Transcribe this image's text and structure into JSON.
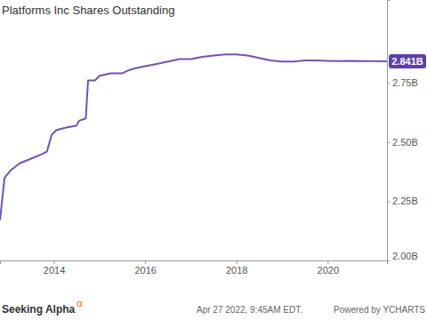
{
  "chart_data": {
    "type": "line",
    "title": "Platforms Inc Shares Outstanding",
    "x": [
      2012.82,
      2012.92,
      2013.05,
      2013.25,
      2013.5,
      2013.75,
      2013.85,
      2013.95,
      2014.05,
      2014.25,
      2014.5,
      2014.55,
      2014.7,
      2014.75,
      2014.9,
      2015.0,
      2015.25,
      2015.5,
      2015.6,
      2015.75,
      2016.0,
      2016.25,
      2016.5,
      2016.75,
      2017.0,
      2017.25,
      2017.5,
      2017.75,
      2018.0,
      2018.25,
      2018.5,
      2018.75,
      2019.0,
      2019.25,
      2019.5,
      2019.75,
      2020.0,
      2020.25,
      2020.5,
      2020.75,
      2021.0,
      2021.3
    ],
    "values": [
      2.17,
      2.35,
      2.38,
      2.41,
      2.43,
      2.45,
      2.46,
      2.53,
      2.55,
      2.56,
      2.57,
      2.59,
      2.6,
      2.76,
      2.76,
      2.78,
      2.79,
      2.79,
      2.8,
      2.81,
      2.82,
      2.83,
      2.84,
      2.85,
      2.85,
      2.86,
      2.865,
      2.87,
      2.87,
      2.865,
      2.855,
      2.845,
      2.84,
      2.84,
      2.845,
      2.845,
      2.843,
      2.842,
      2.843,
      2.842,
      2.842,
      2.841
    ],
    "color": "#6f52c2",
    "xlim": [
      2012.82,
      2021.3
    ],
    "xticks": [
      2014,
      2016,
      2018,
      2020
    ],
    "ylim": [
      2.0,
      3.1
    ],
    "yticks": [
      {
        "value": 2.0,
        "label": "2.00B"
      },
      {
        "value": 2.25,
        "label": "2.25B"
      },
      {
        "value": 2.5,
        "label": "2.50B"
      },
      {
        "value": 2.75,
        "label": "2.75B"
      }
    ],
    "grid": false,
    "annotations": [
      {
        "text": "2.841B",
        "value": 2.841
      }
    ],
    "source": "Seeking Alpha",
    "source_mark": "α",
    "footer": "Apr 27 2022, 9:45AM EDT.",
    "credit": "Powered by YCHARTS"
  }
}
